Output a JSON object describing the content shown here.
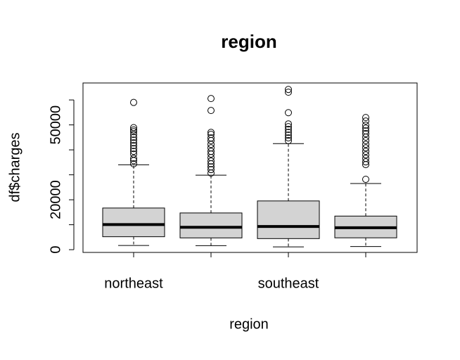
{
  "chart_data": {
    "type": "box",
    "title": "region",
    "x_label": "region",
    "y_label": "df$charges",
    "categories": [
      "northeast",
      null,
      "southeast",
      null
    ],
    "color": "#d3d3d3",
    "boxes": [
      {
        "min": 1695,
        "q1": 5194,
        "median": 10058,
        "q3": 16687,
        "max": 34000,
        "outliers": [
          59000,
          48900,
          48000,
          47300,
          46200,
          45000,
          43900,
          42800,
          41700,
          40500,
          39400,
          38300,
          36600,
          35700,
          34400
        ]
      },
      {
        "min": 1621,
        "q1": 4720,
        "median": 8966,
        "q3": 14712,
        "max": 29860,
        "outliers": [
          60560,
          55770,
          47000,
          46200,
          44800,
          43700,
          42200,
          40800,
          39400,
          38300,
          36900,
          35500,
          34400,
          33200,
          32100,
          30700
        ]
      },
      {
        "min": 1122,
        "q1": 4441,
        "median": 9294,
        "q3": 19526,
        "max": 42500,
        "outliers": [
          64200,
          63100,
          54900,
          50400,
          49300,
          48200,
          47000,
          45900,
          44800,
          43700
        ]
      },
      {
        "min": 1242,
        "q1": 4751,
        "median": 8799,
        "q3": 13463,
        "max": 26500,
        "outliers": [
          52960,
          51550,
          49900,
          48700,
          47600,
          46500,
          45100,
          43700,
          42200,
          40800,
          39400,
          38000,
          36600,
          35200,
          34100,
          28200
        ]
      }
    ],
    "ylim": [
      -1100,
      66800
    ],
    "yticks": [
      0,
      {
        "value": 10000,
        "label": null
      },
      20000,
      {
        "value": 30000,
        "label": null
      },
      {
        "value": 40000,
        "label": null
      },
      50000,
      {
        "value": 60000,
        "label": null
      }
    ]
  }
}
